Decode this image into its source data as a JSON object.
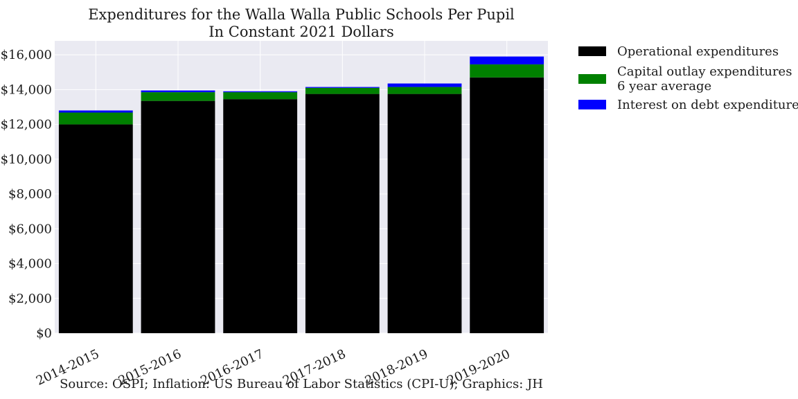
{
  "chart_data": {
    "type": "bar",
    "stacked": true,
    "title": "Expenditures for the Walla Walla Public Schools Per Pupil",
    "subtitle": "In Constant 2021 Dollars",
    "xlabel": "",
    "ylabel": "",
    "ylim": [
      0,
      16800
    ],
    "yticks": [
      0,
      2000,
      4000,
      6000,
      8000,
      10000,
      12000,
      14000,
      16000
    ],
    "ytick_labels": [
      "$0",
      "$2,000",
      "$4,000",
      "$6,000",
      "$8,000",
      "$10,000",
      "$12,000",
      "$14,000",
      "$16,000"
    ],
    "categories": [
      "2014-2015",
      "2015-2016",
      "2016-2017",
      "2017-2018",
      "2018-2019",
      "2019-2020"
    ],
    "series": [
      {
        "name": "Operational expenditures",
        "color": "#000000",
        "values": [
          12000,
          13350,
          13450,
          13750,
          13750,
          14700
        ]
      },
      {
        "name": "Capital outlay expenditures\n6 year average",
        "color": "#008000",
        "values": [
          680,
          500,
          400,
          350,
          400,
          750
        ]
      },
      {
        "name": "Interest on debt expenditures",
        "color": "#0000ff",
        "values": [
          120,
          100,
          50,
          50,
          200,
          450
        ]
      }
    ],
    "grid": true,
    "legend_position": "outside-right",
    "background_color": "#eaeaf2",
    "source_note": "Source: OSPI; Inflation: US Bureau of Labor Statistics (CPI-U); Graphics: JH"
  }
}
